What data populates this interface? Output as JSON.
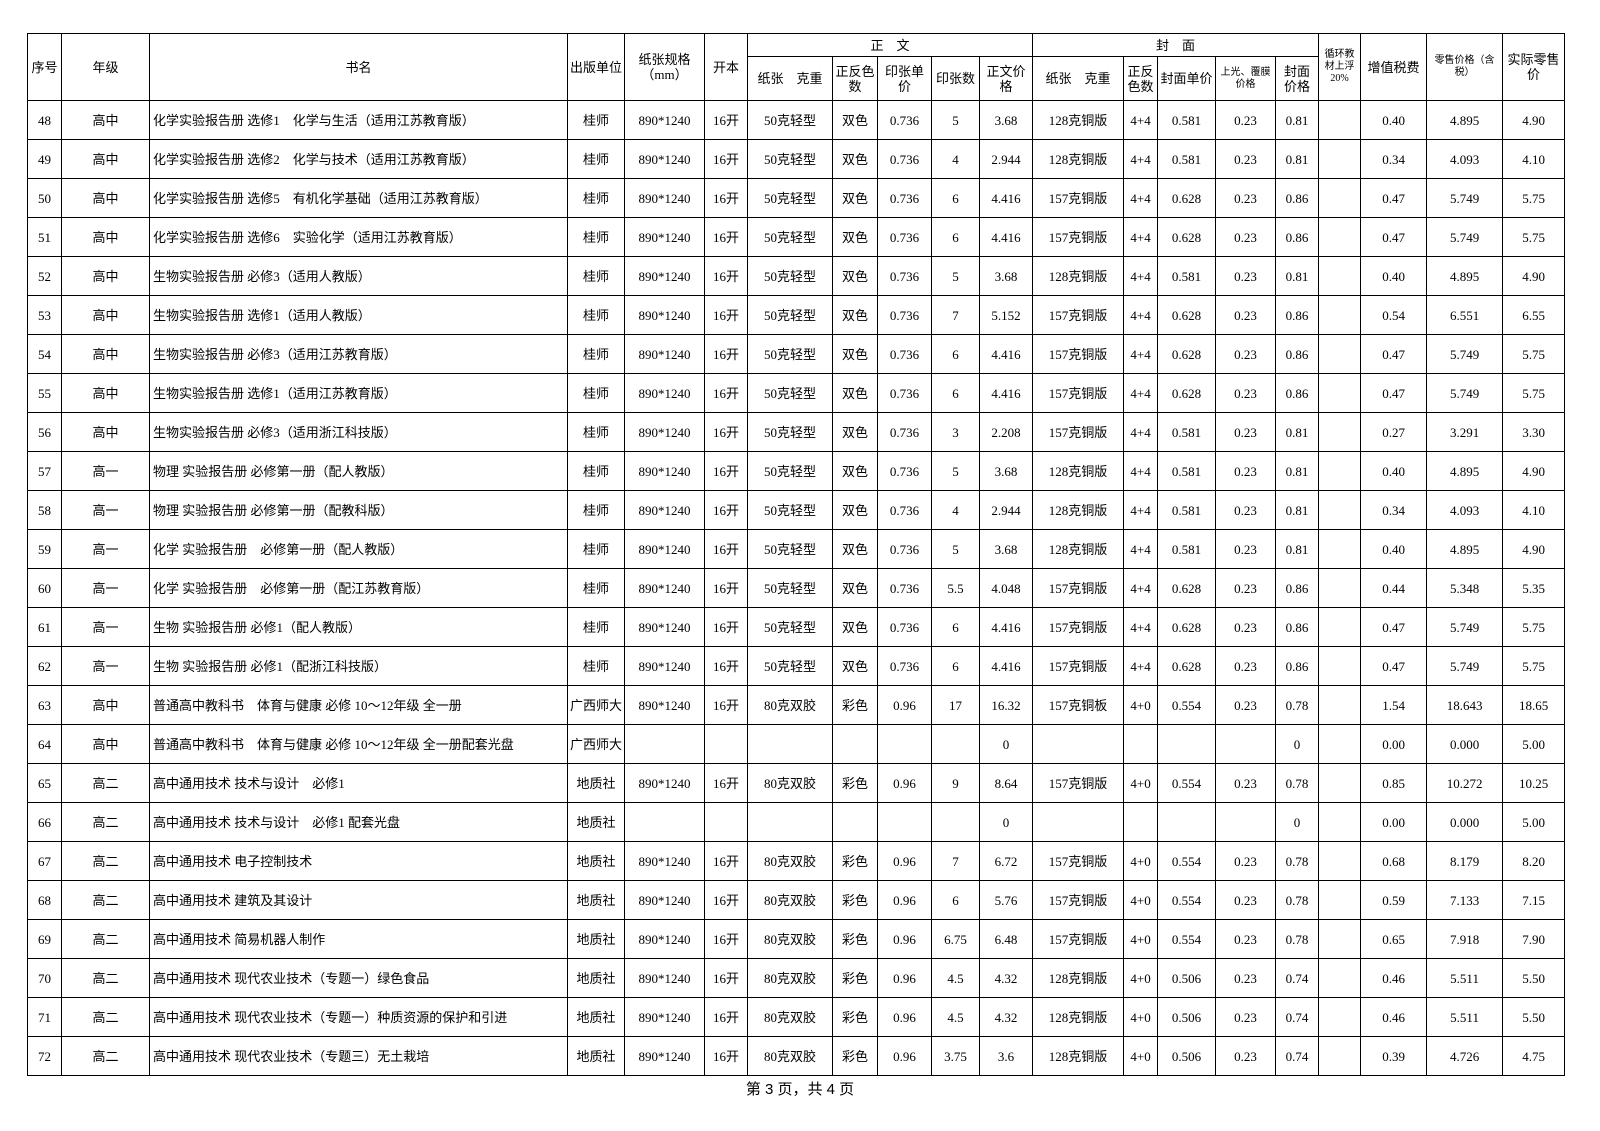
{
  "table": {
    "header_top": [
      "序号",
      "年级",
      "书名",
      "出版单位",
      "纸张规格（mm）",
      "开本",
      "正　文",
      "封　面",
      "循环教材上浮20%",
      "增值税费",
      "零售价格（含税）",
      "实际零售价"
    ],
    "header_sub": [
      "纸张　克重",
      "正反色数",
      "印张单价",
      "印张数",
      "正文价格",
      "纸张　克重",
      "正反色数",
      "封面单价",
      "上光、覆膜价格",
      "封面价格"
    ],
    "rows": [
      [
        "48",
        "高中",
        "化学实验报告册 选修1　化学与生活（适用江苏教育版）",
        "桂师",
        "890*1240",
        "16开",
        "50克轻型",
        "双色",
        "0.736",
        "5",
        "3.68",
        "128克铜版",
        "4+4",
        "0.581",
        "0.23",
        "0.81",
        null,
        "0.40",
        "4.895",
        "4.90"
      ],
      [
        "49",
        "高中",
        "化学实验报告册 选修2　化学与技术（适用江苏教育版）",
        "桂师",
        "890*1240",
        "16开",
        "50克轻型",
        "双色",
        "0.736",
        "4",
        "2.944",
        "128克铜版",
        "4+4",
        "0.581",
        "0.23",
        "0.81",
        null,
        "0.34",
        "4.093",
        "4.10"
      ],
      [
        "50",
        "高中",
        "化学实验报告册 选修5　有机化学基础（适用江苏教育版）",
        "桂师",
        "890*1240",
        "16开",
        "50克轻型",
        "双色",
        "0.736",
        "6",
        "4.416",
        "157克铜版",
        "4+4",
        "0.628",
        "0.23",
        "0.86",
        null,
        "0.47",
        "5.749",
        "5.75"
      ],
      [
        "51",
        "高中",
        "化学实验报告册 选修6　实验化学（适用江苏教育版）",
        "桂师",
        "890*1240",
        "16开",
        "50克轻型",
        "双色",
        "0.736",
        "6",
        "4.416",
        "157克铜版",
        "4+4",
        "0.628",
        "0.23",
        "0.86",
        null,
        "0.47",
        "5.749",
        "5.75"
      ],
      [
        "52",
        "高中",
        "生物实验报告册 必修3（适用人教版）",
        "桂师",
        "890*1240",
        "16开",
        "50克轻型",
        "双色",
        "0.736",
        "5",
        "3.68",
        "128克铜版",
        "4+4",
        "0.581",
        "0.23",
        "0.81",
        null,
        "0.40",
        "4.895",
        "4.90"
      ],
      [
        "53",
        "高中",
        "生物实验报告册 选修1（适用人教版）",
        "桂师",
        "890*1240",
        "16开",
        "50克轻型",
        "双色",
        "0.736",
        "7",
        "5.152",
        "157克铜版",
        "4+4",
        "0.628",
        "0.23",
        "0.86",
        null,
        "0.54",
        "6.551",
        "6.55"
      ],
      [
        "54",
        "高中",
        "生物实验报告册 必修3（适用江苏教育版）",
        "桂师",
        "890*1240",
        "16开",
        "50克轻型",
        "双色",
        "0.736",
        "6",
        "4.416",
        "157克铜版",
        "4+4",
        "0.628",
        "0.23",
        "0.86",
        null,
        "0.47",
        "5.749",
        "5.75"
      ],
      [
        "55",
        "高中",
        "生物实验报告册 选修1（适用江苏教育版）",
        "桂师",
        "890*1240",
        "16开",
        "50克轻型",
        "双色",
        "0.736",
        "6",
        "4.416",
        "157克铜版",
        "4+4",
        "0.628",
        "0.23",
        "0.86",
        null,
        "0.47",
        "5.749",
        "5.75"
      ],
      [
        "56",
        "高中",
        "生物实验报告册 必修3（适用浙江科技版）",
        "桂师",
        "890*1240",
        "16开",
        "50克轻型",
        "双色",
        "0.736",
        "3",
        "2.208",
        "157克铜版",
        "4+4",
        "0.581",
        "0.23",
        "0.81",
        null,
        "0.27",
        "3.291",
        "3.30"
      ],
      [
        "57",
        "高一",
        "物理 实验报告册 必修第一册（配人教版）",
        "桂师",
        "890*1240",
        "16开",
        "50克轻型",
        "双色",
        "0.736",
        "5",
        "3.68",
        "128克铜版",
        "4+4",
        "0.581",
        "0.23",
        "0.81",
        null,
        "0.40",
        "4.895",
        "4.90"
      ],
      [
        "58",
        "高一",
        "物理 实验报告册 必修第一册（配教科版）",
        "桂师",
        "890*1240",
        "16开",
        "50克轻型",
        "双色",
        "0.736",
        "4",
        "2.944",
        "128克铜版",
        "4+4",
        "0.581",
        "0.23",
        "0.81",
        null,
        "0.34",
        "4.093",
        "4.10"
      ],
      [
        "59",
        "高一",
        "化学 实验报告册　必修第一册（配人教版）",
        "桂师",
        "890*1240",
        "16开",
        "50克轻型",
        "双色",
        "0.736",
        "5",
        "3.68",
        "128克铜版",
        "4+4",
        "0.581",
        "0.23",
        "0.81",
        null,
        "0.40",
        "4.895",
        "4.90"
      ],
      [
        "60",
        "高一",
        "化学 实验报告册　必修第一册（配江苏教育版）",
        "桂师",
        "890*1240",
        "16开",
        "50克轻型",
        "双色",
        "0.736",
        "5.5",
        "4.048",
        "157克铜版",
        "4+4",
        "0.628",
        "0.23",
        "0.86",
        null,
        "0.44",
        "5.348",
        "5.35"
      ],
      [
        "61",
        "高一",
        "生物 实验报告册 必修1（配人教版）",
        "桂师",
        "890*1240",
        "16开",
        "50克轻型",
        "双色",
        "0.736",
        "6",
        "4.416",
        "157克铜版",
        "4+4",
        "0.628",
        "0.23",
        "0.86",
        null,
        "0.47",
        "5.749",
        "5.75"
      ],
      [
        "62",
        "高一",
        "生物 实验报告册 必修1（配浙江科技版）",
        "桂师",
        "890*1240",
        "16开",
        "50克轻型",
        "双色",
        "0.736",
        "6",
        "4.416",
        "157克铜版",
        "4+4",
        "0.628",
        "0.23",
        "0.86",
        null,
        "0.47",
        "5.749",
        "5.75"
      ],
      [
        "63",
        "高中",
        "普通高中教科书　体育与健康 必修 10～12年级 全一册",
        "广西师大",
        "890*1240",
        "16开",
        "80克双胶",
        "彩色",
        "0.96",
        "17",
        "16.32",
        "157克铜板",
        "4+0",
        "0.554",
        "0.23",
        "0.78",
        null,
        "1.54",
        "18.643",
        "18.65"
      ],
      [
        "64",
        "高中",
        "普通高中教科书　体育与健康 必修 10～12年级 全一册配套光盘",
        "广西师大",
        null,
        null,
        null,
        null,
        null,
        null,
        "0",
        null,
        null,
        null,
        null,
        "0",
        null,
        "0.00",
        "0.000",
        "5.00"
      ],
      [
        "65",
        "高二",
        "高中通用技术 技术与设计　必修1",
        "地质社",
        "890*1240",
        "16开",
        "80克双胶",
        "彩色",
        "0.96",
        "9",
        "8.64",
        "157克铜版",
        "4+0",
        "0.554",
        "0.23",
        "0.78",
        null,
        "0.85",
        "10.272",
        "10.25"
      ],
      [
        "66",
        "高二",
        "高中通用技术 技术与设计　必修1 配套光盘",
        "地质社",
        null,
        null,
        null,
        null,
        null,
        null,
        "0",
        null,
        null,
        null,
        null,
        "0",
        null,
        "0.00",
        "0.000",
        "5.00"
      ],
      [
        "67",
        "高二",
        "高中通用技术 电子控制技术",
        "地质社",
        "890*1240",
        "16开",
        "80克双胶",
        "彩色",
        "0.96",
        "7",
        "6.72",
        "157克铜版",
        "4+0",
        "0.554",
        "0.23",
        "0.78",
        null,
        "0.68",
        "8.179",
        "8.20"
      ],
      [
        "68",
        "高二",
        "高中通用技术 建筑及其设计",
        "地质社",
        "890*1240",
        "16开",
        "80克双胶",
        "彩色",
        "0.96",
        "6",
        "5.76",
        "157克铜版",
        "4+0",
        "0.554",
        "0.23",
        "0.78",
        null,
        "0.59",
        "7.133",
        "7.15"
      ],
      [
        "69",
        "高二",
        "高中通用技术 简易机器人制作",
        "地质社",
        "890*1240",
        "16开",
        "80克双胶",
        "彩色",
        "0.96",
        "6.75",
        "6.48",
        "157克铜版",
        "4+0",
        "0.554",
        "0.23",
        "0.78",
        null,
        "0.65",
        "7.918",
        "7.90"
      ],
      [
        "70",
        "高二",
        "高中通用技术 现代农业技术（专题一）绿色食品",
        "地质社",
        "890*1240",
        "16开",
        "80克双胶",
        "彩色",
        "0.96",
        "4.5",
        "4.32",
        "128克铜版",
        "4+0",
        "0.506",
        "0.23",
        "0.74",
        null,
        "0.46",
        "5.511",
        "5.50"
      ],
      [
        "71",
        "高二",
        "高中通用技术 现代农业技术（专题一）种质资源的保护和引进",
        "地质社",
        "890*1240",
        "16开",
        "80克双胶",
        "彩色",
        "0.96",
        "4.5",
        "4.32",
        "128克铜版",
        "4+0",
        "0.506",
        "0.23",
        "0.74",
        null,
        "0.46",
        "5.511",
        "5.50"
      ],
      [
        "72",
        "高二",
        "高中通用技术 现代农业技术（专题三）无土栽培",
        "地质社",
        "890*1240",
        "16开",
        "80克双胶",
        "彩色",
        "0.96",
        "3.75",
        "3.6",
        "128克铜版",
        "4+0",
        "0.506",
        "0.23",
        "0.74",
        null,
        "0.39",
        "4.726",
        "4.75"
      ]
    ]
  },
  "footer": "第 3 页，共 4 页"
}
